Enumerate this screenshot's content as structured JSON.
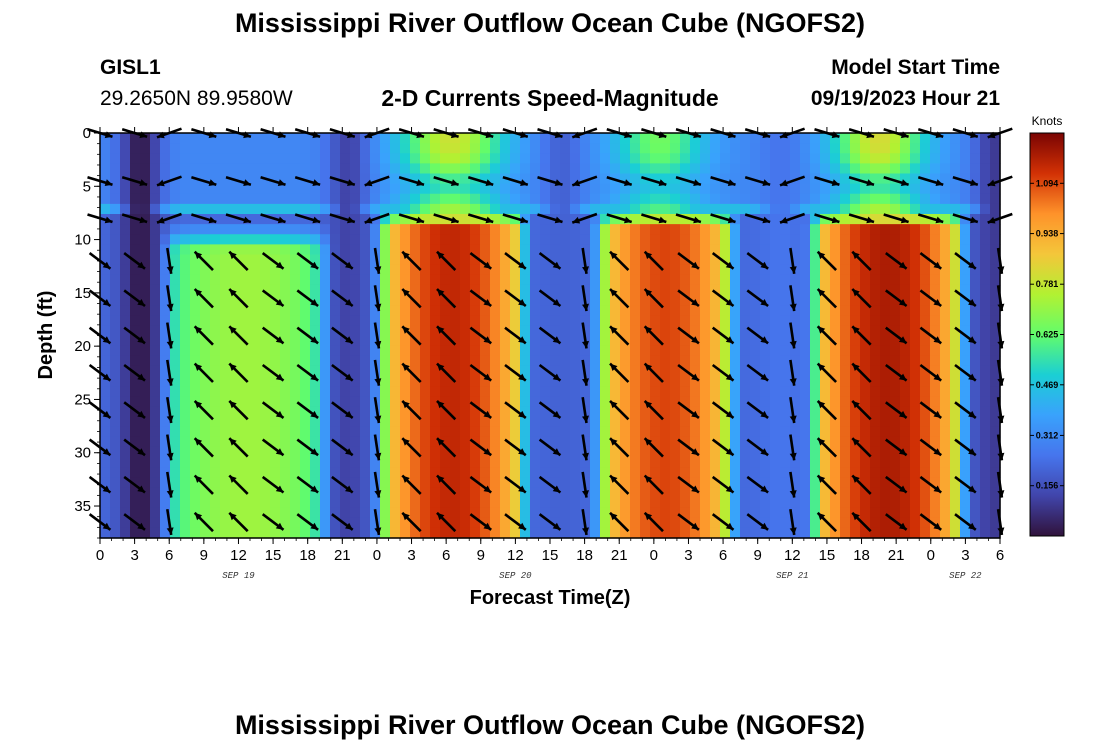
{
  "header": {
    "title": "Mississippi River Outflow Ocean Cube (NGOFS2)",
    "station_id": "GISL1",
    "station_coords": "29.2650N  89.9580W",
    "subtitle": "2-D Currents Speed-Magnitude",
    "model_start_label": "Model Start Time",
    "model_start_value": "09/19/2023 Hour 21"
  },
  "footer": {
    "title": "Mississippi River Outflow Ocean Cube (NGOFS2)"
  },
  "chart_data": {
    "type": "heatmap",
    "xlabel": "Forecast Time(Z)",
    "ylabel": "Depth (ft)",
    "x_range_hours": [
      0,
      78
    ],
    "x_tick_labels": [
      "0",
      "3",
      "6",
      "9",
      "12",
      "15",
      "18",
      "21",
      "0",
      "3",
      "6",
      "9",
      "12",
      "15",
      "18",
      "21",
      "0",
      "3",
      "6",
      "9",
      "12",
      "15",
      "18",
      "21",
      "0",
      "3",
      "6"
    ],
    "date_labels": [
      {
        "label": "SEP 19",
        "hour": 12
      },
      {
        "label": "SEP 20",
        "hour": 36
      },
      {
        "label": "SEP 21",
        "hour": 60
      },
      {
        "label": "SEP 22",
        "hour": 75
      }
    ],
    "y_range_ft": [
      0,
      38
    ],
    "y_reversed": true,
    "y_ticks": [
      "0",
      "5",
      "10",
      "15",
      "20",
      "25",
      "30",
      "35"
    ],
    "colorbar": {
      "title": "Knots",
      "range": [
        0.0,
        1.25
      ],
      "tick_values": [
        "1.094",
        "0.938",
        "0.781",
        "0.625",
        "0.469",
        "0.312",
        "0.156"
      ],
      "colormap": "jet"
    },
    "speed_features": [
      {
        "name": "lower_core_1",
        "t_start": 6.5,
        "t_end": 19,
        "depth_top": 10.5,
        "peak_knots": 0.72
      },
      {
        "name": "lower_core_2",
        "t_start": 25,
        "t_end": 36,
        "depth_top": 8.5,
        "peak_knots": 1.15
      },
      {
        "name": "lower_core_3",
        "t_start": 44,
        "t_end": 54,
        "depth_top": 8.5,
        "peak_knots": 1.1
      },
      {
        "name": "lower_core_4",
        "t_start": 62.5,
        "t_end": 74,
        "depth_top": 8.5,
        "peak_knots": 1.18
      },
      {
        "name": "surface_1",
        "t_center": 30.5,
        "peak_knots": 0.8
      },
      {
        "name": "surface_2",
        "t_center": 48.5,
        "peak_knots": 0.65
      },
      {
        "name": "surface_3",
        "t_center": 67.5,
        "peak_knots": 0.82
      }
    ],
    "minimum_zones": [
      {
        "t_center": 3.5,
        "knots": 0.02
      },
      {
        "t_center": 21.5,
        "knots": 0.12
      },
      {
        "t_center": 40,
        "knots": 0.2
      },
      {
        "t_center": 59,
        "knots": 0.25
      },
      {
        "t_center": 77.5,
        "knots": 0.1
      }
    ],
    "vector_depths_ft": [
      0,
      4.5,
      8,
      12,
      15.5,
      19,
      22.5,
      26,
      29.5,
      33,
      36.5
    ],
    "vector_times_h": [
      0,
      3,
      6,
      9,
      12,
      15,
      18,
      21,
      24,
      27,
      30,
      33,
      36,
      39,
      42,
      45,
      48,
      51,
      54,
      57,
      60,
      63,
      66,
      69,
      72,
      75,
      78
    ]
  }
}
